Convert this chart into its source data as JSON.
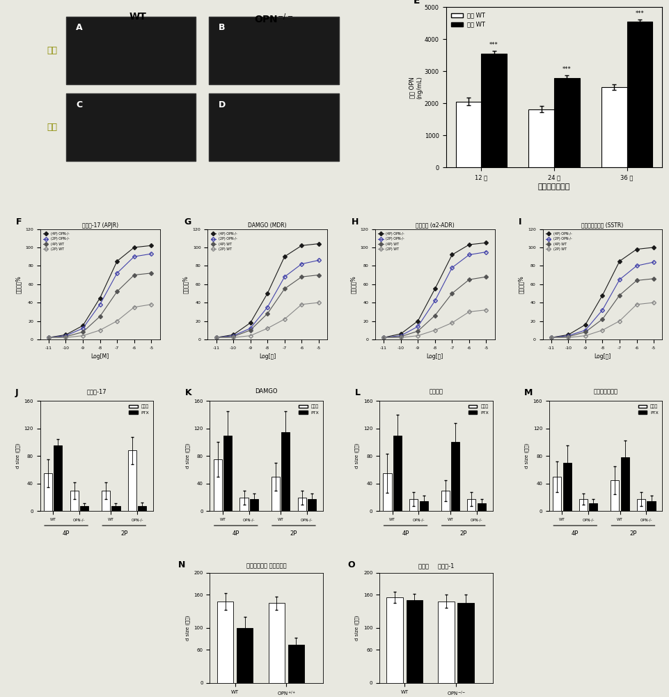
{
  "background": "#e8e8e0",
  "panel_E": {
    "title": "E",
    "groups": [
      "12 周",
      "24 周",
      "36 周"
    ],
    "white_vals": [
      2050,
      1820,
      2500
    ],
    "white_err": [
      120,
      100,
      80
    ],
    "black_vals": [
      3550,
      2780,
      4550
    ],
    "black_err": [
      80,
      90,
      60
    ],
    "ylabel": "血浆 OPN\n(ng/mL)",
    "xlabel": "外科手术后时间",
    "legend_white": "四足 WT",
    "legend_black": "双足 WT",
    "ylim": [
      0,
      5000
    ],
    "yticks": [
      0,
      1000,
      2000,
      3000,
      4000,
      5000
    ],
    "sig_labels": [
      "***",
      "***",
      "***"
    ]
  },
  "panel_F": {
    "label": "F",
    "title": "爱帕林-17 (APJR)",
    "xlabel": "Log[M]",
    "ylabel": "最大反应%",
    "ylim": [
      0,
      120
    ],
    "yticks": [
      0,
      20,
      40,
      60,
      80,
      100,
      120
    ],
    "xticks": [
      -11,
      -10,
      -9,
      -8,
      -7,
      -6,
      -5
    ],
    "series": [
      {
        "label": "(4P) OPN-/-",
        "color": "#1a1a1a",
        "filled": true,
        "yvals": [
          2,
          5,
          15,
          45,
          85,
          100,
          102
        ]
      },
      {
        "label": "(2P) OPN-/-",
        "color": "#555555",
        "filled": false,
        "yvals": [
          2,
          4,
          12,
          38,
          72,
          90,
          93
        ]
      },
      {
        "label": "(4P) WT",
        "color": "#333333",
        "filled": true,
        "yvals": [
          2,
          3,
          8,
          25,
          52,
          70,
          72
        ]
      },
      {
        "label": "(2P) WT",
        "color": "#888888",
        "filled": false,
        "yvals": [
          2,
          2,
          4,
          10,
          20,
          35,
          38
        ]
      }
    ]
  },
  "panel_G": {
    "label": "G",
    "title": "DAMGO (MDR)",
    "xlabel": "Log[浓]",
    "ylabel": "最大反应%",
    "ylim": [
      0,
      120
    ],
    "yticks": [
      0,
      20,
      40,
      60,
      80,
      100,
      120
    ],
    "xticks": [
      -11,
      -10,
      -9,
      -8,
      -7,
      -6,
      -5
    ],
    "series": [
      {
        "label": "(4P) OPN-/-",
        "color": "#1a1a1a",
        "filled": true,
        "yvals": [
          2,
          5,
          18,
          50,
          90,
          102,
          104
        ]
      },
      {
        "label": "(2P) OPN-/-",
        "color": "#4444aa",
        "filled": false,
        "yvals": [
          2,
          4,
          12,
          35,
          68,
          82,
          86
        ]
      },
      {
        "label": "(4P) WT",
        "color": "#333333",
        "filled": true,
        "yvals": [
          2,
          3,
          10,
          28,
          55,
          68,
          70
        ]
      },
      {
        "label": "(2P) WT",
        "color": "#888888",
        "filled": false,
        "yvals": [
          2,
          2,
          4,
          12,
          22,
          38,
          40
        ]
      }
    ]
  },
  "panel_H": {
    "label": "H",
    "title": "媄甲呀呃 (α2-ADR)",
    "xlabel": "Log[浓]",
    "ylabel": "最大反应%",
    "ylim": [
      0,
      120
    ],
    "yticks": [
      0,
      20,
      40,
      60,
      80,
      100,
      120
    ],
    "xticks": [
      -11,
      -10,
      -9,
      -8,
      -7,
      -6,
      -5
    ],
    "series": [
      {
        "label": "(4P) OPN-/-",
        "color": "#1a1a1a",
        "filled": true,
        "yvals": [
          2,
          6,
          20,
          55,
          92,
          103,
          105
        ]
      },
      {
        "label": "(2P) OPN-/-",
        "color": "#555555",
        "filled": false,
        "yvals": [
          2,
          4,
          14,
          42,
          78,
          92,
          95
        ]
      },
      {
        "label": "(4P) WT",
        "color": "#333333",
        "filled": true,
        "yvals": [
          2,
          3,
          9,
          26,
          50,
          65,
          68
        ]
      },
      {
        "label": "(2P) WT",
        "color": "#888888",
        "filled": false,
        "yvals": [
          2,
          2,
          4,
          10,
          18,
          30,
          32
        ]
      }
    ]
  },
  "panel_I": {
    "label": "I",
    "title": "生长激素抑制素 (SSTR)",
    "xlabel": "Log[浓]",
    "ylabel": "最大反应%",
    "ylim": [
      0,
      120
    ],
    "yticks": [
      0,
      20,
      40,
      60,
      80,
      100,
      120
    ],
    "xticks": [
      -11,
      -10,
      -9,
      -8,
      -7,
      -6,
      -5
    ],
    "series": [
      {
        "label": "(4P) OPN-/-",
        "color": "#1a1a1a",
        "filled": true,
        "yvals": [
          2,
          5,
          16,
          48,
          85,
          98,
          100
        ]
      },
      {
        "label": "(2P) OPN-/-",
        "color": "#555555",
        "filled": false,
        "yvals": [
          2,
          4,
          10,
          32,
          65,
          80,
          84
        ]
      },
      {
        "label": "(4P) WT",
        "color": "#333333",
        "filled": true,
        "yvals": [
          2,
          3,
          8,
          22,
          48,
          64,
          66
        ]
      },
      {
        "label": "(2P) WT",
        "color": "#888888",
        "filled": false,
        "yvals": [
          2,
          2,
          4,
          10,
          20,
          38,
          40
        ]
      }
    ]
  },
  "panels_JKLM": [
    {
      "label": "J",
      "drug": "爱帕林-17",
      "ylabel": "d size (效量)",
      "ylim": [
        0,
        160
      ],
      "yticks": [
        0,
        40,
        80,
        120,
        160
      ],
      "groups_4p": {
        "wt": [
          55,
          95
        ],
        "opn": [
          30,
          8
        ]
      },
      "groups_2p": {
        "wt": [
          30,
          8
        ],
        "opn": [
          88,
          8
        ]
      },
      "err_4p": {
        "wt": [
          20,
          10
        ],
        "opn": [
          12,
          4
        ]
      },
      "err_2p": {
        "wt": [
          12,
          4
        ],
        "opn": [
          20,
          5
        ]
      }
    },
    {
      "label": "K",
      "drug": "DAMGO",
      "ylabel": "d size (效量)",
      "ylim": [
        0,
        160
      ],
      "yticks": [
        0,
        40,
        80,
        120,
        160
      ],
      "groups_4p": {
        "wt": [
          75,
          110
        ],
        "opn": [
          20,
          18
        ]
      },
      "groups_2p": {
        "wt": [
          50,
          115
        ],
        "opn": [
          20,
          18
        ]
      },
      "err_4p": {
        "wt": [
          25,
          35
        ],
        "opn": [
          10,
          8
        ]
      },
      "err_2p": {
        "wt": [
          20,
          30
        ],
        "opn": [
          10,
          8
        ]
      }
    },
    {
      "label": "L",
      "drug": "媄甲呀呃",
      "ylabel": "d size (效量)",
      "ylim": [
        0,
        160
      ],
      "yticks": [
        0,
        40,
        80,
        120,
        160
      ],
      "groups_4p": {
        "wt": [
          55,
          110
        ],
        "opn": [
          18,
          15
        ]
      },
      "groups_2p": {
        "wt": [
          30,
          100
        ],
        "opn": [
          18,
          12
        ]
      },
      "err_4p": {
        "wt": [
          28,
          30
        ],
        "opn": [
          10,
          8
        ]
      },
      "err_2p": {
        "wt": [
          15,
          28
        ],
        "opn": [
          10,
          6
        ]
      }
    },
    {
      "label": "M",
      "drug": "生长激素抑制素",
      "ylabel": "d size (效量)",
      "ylim": [
        0,
        160
      ],
      "yticks": [
        0,
        40,
        80,
        120,
        160
      ],
      "groups_4p": {
        "wt": [
          50,
          70
        ],
        "opn": [
          18,
          12
        ]
      },
      "groups_2p": {
        "wt": [
          45,
          78
        ],
        "opn": [
          18,
          15
        ]
      },
      "err_4p": {
        "wt": [
          22,
          25
        ],
        "opn": [
          8,
          6
        ]
      },
      "err_2p": {
        "wt": [
          20,
          25
        ],
        "opn": [
          10,
          8
        ]
      }
    }
  ],
  "panel_N": {
    "label": "N",
    "title": "异丙肾上腺素 去甲加压素",
    "ylabel": "d size (效量)",
    "ylim": [
      0,
      200
    ],
    "yticks": [
      0,
      60,
      100,
      160,
      200
    ],
    "wt_white": 148,
    "wt_black": 100,
    "wt_white_err": 15,
    "wt_black_err": 20,
    "opn_white": 145,
    "opn_black": 70,
    "opn_white_err": 12,
    "opn_black_err": 12,
    "xtick_labels": [
      "WT",
      "OPN$^{+/+}$"
    ]
  },
  "panel_O": {
    "label": "O",
    "title": "缩激肽     内皮素-1",
    "ylabel": "d size (效量)",
    "ylim": [
      0,
      200
    ],
    "yticks": [
      0,
      60,
      100,
      160,
      200
    ],
    "wt_white": 155,
    "wt_black": 150,
    "wt_white_err": 10,
    "wt_black_err": 12,
    "opn_white": 148,
    "opn_black": 145,
    "opn_white_err": 12,
    "opn_black_err": 15,
    "xtick_labels": [
      "WT",
      "OPN$^{-/-}$"
    ]
  },
  "mice_labels": {
    "wt": "WT",
    "opn": "OPN$^{-/-}$",
    "quadruped": "四足",
    "biped": "双足",
    "quadruped_color": "#8B8B00",
    "biped_color": "#8B8B00"
  }
}
